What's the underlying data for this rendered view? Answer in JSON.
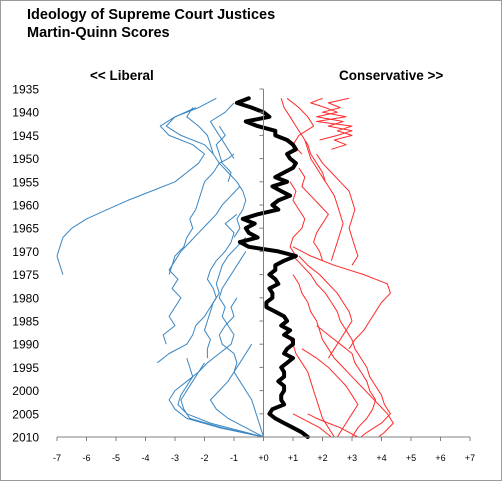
{
  "chart_data": {
    "type": "line",
    "title": "Ideology of Supreme Court Justices",
    "subtitle": "Martin-Quinn Scores",
    "left_label": "<< Liberal",
    "right_label": "Conservative  >>",
    "orientation": "horizontal-value-axis, vertical-year-axis",
    "xlim": [
      -7,
      7
    ],
    "ylim": [
      1935,
      2010
    ],
    "x_ticks": [
      "-7",
      "-6",
      "-5",
      "-4",
      "-3",
      "-2",
      "-1",
      "+0",
      "+1",
      "+2",
      "+3",
      "+4",
      "+5",
      "+6",
      "+7"
    ],
    "y_ticks": [
      "1935",
      "1940",
      "1945",
      "1950",
      "1955",
      "1960",
      "1965",
      "1970",
      "1975",
      "1980",
      "1985",
      "1990",
      "1995",
      "2000",
      "2005",
      "2010"
    ],
    "grid": false,
    "colors": {
      "liberal": "#3a86c2",
      "conservative": "#ff2a2a",
      "median": "#000000",
      "axis": "#808080"
    },
    "median": {
      "years": [
        1937,
        1938,
        1939,
        1940,
        1941,
        1942,
        1943,
        1944,
        1945,
        1946,
        1947,
        1948,
        1949,
        1950,
        1951,
        1952,
        1953,
        1954,
        1955,
        1956,
        1957,
        1958,
        1959,
        1960,
        1961,
        1962,
        1963,
        1964,
        1965,
        1966,
        1967,
        1968,
        1969,
        1970,
        1971,
        1972,
        1973,
        1974,
        1975,
        1976,
        1977,
        1978,
        1979,
        1980,
        1981,
        1982,
        1983,
        1984,
        1985,
        1986,
        1987,
        1988,
        1989,
        1990,
        1991,
        1992,
        1993,
        1994,
        1995,
        1996,
        1997,
        1998,
        1999,
        2000,
        2001,
        2002,
        2003,
        2004,
        2005,
        2006,
        2007,
        2008,
        2009,
        2010
      ],
      "values": [
        -0.5,
        -0.9,
        -0.4,
        0.0,
        0.2,
        -0.6,
        -0.2,
        0.4,
        0.4,
        0.8,
        1.0,
        1.1,
        0.8,
        0.9,
        1.1,
        1.0,
        0.7,
        0.4,
        0.8,
        0.3,
        0.6,
        0.9,
        0.5,
        0.3,
        0.5,
        -0.2,
        -0.7,
        -0.3,
        -0.6,
        -0.5,
        -0.2,
        -0.8,
        -0.5,
        0.5,
        1.1,
        0.7,
        0.4,
        0.4,
        0.2,
        0.4,
        0.5,
        0.2,
        0.3,
        0.3,
        0.1,
        0.1,
        0.4,
        0.7,
        0.8,
        0.6,
        0.9,
        0.7,
        1.0,
        1.0,
        0.8,
        0.7,
        1.0,
        0.8,
        0.6,
        0.7,
        0.7,
        0.5,
        0.7,
        0.7,
        0.6,
        0.6,
        0.7,
        0.3,
        0.2,
        0.4,
        0.7,
        1.0,
        1.3,
        1.5
      ]
    },
    "liberal_series": [
      {
        "years": [
          1937,
          1939,
          1941,
          1943,
          1945,
          1947,
          1949
        ],
        "values": [
          -1.6,
          -2.2,
          -3.0,
          -3.3,
          -2.8,
          -2.0,
          -1.7
        ]
      },
      {
        "years": [
          1939,
          1941,
          1943,
          1945,
          1947,
          1949,
          1951,
          1953,
          1955,
          1957,
          1959,
          1961,
          1963,
          1965,
          1967,
          1969,
          1971,
          1973,
          1975
        ],
        "values": [
          -2.3,
          -3.0,
          -3.5,
          -3.2,
          -2.4,
          -2.0,
          -2.2,
          -2.6,
          -3.0,
          -3.8,
          -4.6,
          -5.3,
          -6.0,
          -6.5,
          -6.8,
          -6.9,
          -7.0,
          -6.9,
          -6.8
        ]
      },
      {
        "years": [
          1939,
          1941,
          1943,
          1945,
          1947,
          1949,
          1951,
          1953,
          1955,
          1957,
          1959,
          1961,
          1963,
          1965,
          1967,
          1969,
          1971,
          1973,
          1975
        ],
        "values": [
          -2.4,
          -2.6,
          -2.2,
          -1.9,
          -1.8,
          -1.7,
          -1.5,
          -1.7,
          -2.0,
          -2.1,
          -2.2,
          -2.3,
          -2.5,
          -2.4,
          -2.6,
          -2.7,
          -3.0,
          -3.1,
          -3.2
        ]
      },
      {
        "years": [
          1938,
          1940,
          1942,
          1944,
          1946,
          1948,
          1950
        ],
        "values": [
          -1.0,
          -1.3,
          -1.8,
          -1.6,
          -1.4,
          -1.2,
          -1.0
        ]
      },
      {
        "years": [
          1943,
          1945,
          1947,
          1949,
          1951,
          1953,
          1955
        ],
        "values": [
          -1.5,
          -1.3,
          -1.6,
          -1.5,
          -1.4,
          -1.1,
          -1.2
        ]
      },
      {
        "years": [
          1949,
          1950,
          1951,
          1953,
          1955,
          1957,
          1959,
          1961,
          1963,
          1965,
          1967
        ],
        "values": [
          -1.0,
          -1.2,
          -1.5,
          -1.2,
          -0.9,
          -0.7,
          -0.6,
          -0.7,
          -0.9,
          -0.8,
          -1.0
        ]
      },
      {
        "years": [
          1956,
          1958,
          1960,
          1962,
          1964,
          1966,
          1968,
          1970,
          1972,
          1974,
          1976,
          1978,
          1980,
          1982,
          1984,
          1986,
          1988,
          1990
        ],
        "values": [
          -0.8,
          -1.1,
          -1.4,
          -1.6,
          -1.9,
          -2.2,
          -2.5,
          -2.8,
          -3.0,
          -3.2,
          -2.9,
          -3.1,
          -2.8,
          -3.0,
          -3.2,
          -3.0,
          -3.4,
          -3.3
        ]
      },
      {
        "years": [
          1962,
          1964,
          1966,
          1968,
          1970,
          1972,
          1974,
          1976,
          1978,
          1980,
          1982,
          1984,
          1986,
          1988,
          1990,
          1992,
          1994
        ],
        "values": [
          -0.9,
          -1.3,
          -1.0,
          -1.1,
          -1.3,
          -1.6,
          -1.8,
          -1.9,
          -1.7,
          -1.6,
          -1.8,
          -2.0,
          -2.3,
          -2.4,
          -2.6,
          -3.2,
          -3.6
        ]
      },
      {
        "years": [
          1967,
          1969,
          1971,
          1973,
          1975,
          1977,
          1979,
          1981,
          1983,
          1985,
          1987,
          1989,
          1991,
          1993
        ],
        "values": [
          -0.6,
          -0.9,
          -1.2,
          -1.4,
          -1.5,
          -1.6,
          -1.5,
          -1.7,
          -1.8,
          -1.9,
          -2.0,
          -1.8,
          -1.9,
          -1.9
        ]
      },
      {
        "years": [
          1970,
          1972,
          1974,
          1976,
          1978,
          1980,
          1982,
          1984,
          1986,
          1988,
          1990,
          1992,
          1994,
          1996,
          1998,
          2000,
          2002,
          2004,
          2006,
          2008,
          2010
        ],
        "values": [
          -0.6,
          -0.8,
          -1.0,
          -1.2,
          -1.4,
          -1.5,
          -1.3,
          -1.4,
          -1.2,
          -1.0,
          -1.1,
          -1.5,
          -1.9,
          -2.2,
          -2.4,
          -2.6,
          -2.8,
          -2.7,
          -2.5,
          -1.4,
          0.0
        ]
      },
      {
        "years": [
          1993,
          1995,
          1997,
          1999,
          2001,
          2003,
          2005,
          2007,
          2009,
          2010
        ],
        "values": [
          -2.6,
          -2.5,
          -2.4,
          -2.6,
          -2.8,
          -2.9,
          -2.6,
          -1.8,
          -0.6,
          0.0
        ]
      },
      {
        "years": [
          1994,
          1996,
          1998,
          2000,
          2002,
          2004,
          2006,
          2008,
          2010
        ],
        "values": [
          -2.0,
          -2.2,
          -2.6,
          -3.0,
          -3.2,
          -3.0,
          -2.6,
          -1.5,
          0.0
        ]
      },
      {
        "years": [
          1990,
          1992,
          1994,
          1996,
          1998,
          2000,
          2002,
          2004,
          2006,
          2008,
          2010
        ],
        "values": [
          -0.4,
          -0.6,
          -0.8,
          -1.0,
          -1.2,
          -1.5,
          -1.8,
          -1.6,
          -1.2,
          -0.6,
          0.0
        ]
      },
      {
        "years": [
          1980,
          1982,
          1984,
          1986,
          1988,
          1990,
          1992,
          1994,
          1996,
          1998,
          2000,
          2002,
          2004,
          2006,
          2008,
          2010
        ],
        "values": [
          -0.9,
          -1.1,
          -1.0,
          -1.3,
          -1.5,
          -1.4,
          -1.0,
          -0.9,
          -1.0,
          -0.8,
          -0.6,
          -0.4,
          -0.3,
          -0.2,
          -0.1,
          0.0
        ]
      }
    ],
    "conservative_series": [
      {
        "years": [
          1937,
          1938,
          1939,
          1940,
          1941,
          1942,
          1943,
          1944,
          1945,
          1946,
          1947,
          1948
        ],
        "values": [
          2.9,
          2.2,
          2.6,
          2.0,
          2.8,
          1.8,
          3.0,
          2.5,
          3.0,
          2.4,
          2.8,
          2.3
        ]
      },
      {
        "years": [
          1937,
          1938,
          1939,
          1940,
          1941,
          1942,
          1943,
          1944,
          1945,
          1946
        ],
        "values": [
          2.0,
          1.6,
          2.1,
          2.5,
          1.8,
          2.7,
          2.2,
          3.0,
          2.5,
          1.9
        ]
      },
      {
        "years": [
          1937,
          1939,
          1941,
          1943,
          1945,
          1947,
          1949
        ],
        "values": [
          0.8,
          1.2,
          1.5,
          1.7,
          1.2,
          1.0,
          1.3
        ]
      },
      {
        "years": [
          1937,
          1939,
          1941,
          1943,
          1945,
          1947,
          1949,
          1951,
          1953,
          1955
        ],
        "values": [
          0.6,
          0.7,
          0.9,
          1.1,
          1.3,
          1.5,
          1.6,
          1.8,
          2.0,
          2.1
        ]
      },
      {
        "years": [
          1946,
          1948,
          1950,
          1952,
          1954,
          1956,
          1958,
          1960,
          1962,
          1964,
          1966,
          1968,
          1970,
          1972
        ],
        "values": [
          1.4,
          1.5,
          1.6,
          1.8,
          2.0,
          2.2,
          2.4,
          2.5,
          2.6,
          2.7,
          2.6,
          2.5,
          2.4,
          2.3
        ]
      },
      {
        "years": [
          1949,
          1951,
          1953,
          1955,
          1957,
          1959,
          1961,
          1963,
          1965,
          1967,
          1969,
          1971,
          1973
        ],
        "values": [
          1.8,
          2.0,
          2.3,
          2.6,
          2.9,
          3.0,
          3.1,
          3.0,
          2.9,
          3.0,
          3.1,
          3.2,
          3.0
        ]
      },
      {
        "years": [
          1952,
          1954,
          1956,
          1958,
          1960,
          1962,
          1964,
          1966,
          1968,
          1970,
          1972
        ],
        "values": [
          1.2,
          1.4,
          1.3,
          1.6,
          1.9,
          2.2,
          2.0,
          1.8,
          1.7,
          1.9,
          2.0
        ]
      },
      {
        "years": [
          1955,
          1957,
          1959,
          1961,
          1963,
          1965,
          1967,
          1969,
          1971
        ],
        "values": [
          0.9,
          1.1,
          1.0,
          1.2,
          1.4,
          1.3,
          1.0,
          0.9,
          1.1
        ]
      },
      {
        "years": [
          1969,
          1971,
          1973,
          1975,
          1977,
          1979,
          1981,
          1983,
          1985,
          1987,
          1989,
          1991
        ],
        "values": [
          1.0,
          1.6,
          2.4,
          3.4,
          4.2,
          4.3,
          4.0,
          3.8,
          3.6,
          3.4,
          3.1,
          2.9
        ]
      },
      {
        "years": [
          1971,
          1973,
          1975,
          1977,
          1979,
          1981,
          1983,
          1985,
          1987,
          1989,
          1991,
          1993,
          1995,
          1997,
          1999,
          2001,
          2003,
          2005,
          2007,
          2009,
          2010
        ],
        "values": [
          1.0,
          1.3,
          1.6,
          1.8,
          2.1,
          2.3,
          2.5,
          2.6,
          2.8,
          3.0,
          3.1,
          3.3,
          3.5,
          3.6,
          3.8,
          4.0,
          4.1,
          4.3,
          4.0,
          3.5,
          3.3
        ]
      },
      {
        "years": [
          1971,
          1973,
          1975,
          1977,
          1979,
          1981,
          1983,
          1985,
          1987,
          1989,
          1991,
          1993
        ],
        "values": [
          1.2,
          1.5,
          1.9,
          2.2,
          2.5,
          2.7,
          2.9,
          3.0,
          2.8,
          2.6,
          2.4,
          2.2
        ]
      },
      {
        "years": [
          1975,
          1977,
          1979,
          1981,
          1983,
          1985,
          1987,
          1989,
          1991,
          1993,
          1995,
          1997,
          1999,
          2001,
          2003,
          2005,
          2007,
          2009,
          2010
        ],
        "values": [
          1.0,
          1.2,
          1.3,
          1.5,
          1.6,
          1.8,
          1.9,
          2.0,
          2.2,
          2.4,
          2.7,
          3.0,
          3.3,
          3.6,
          3.9,
          4.2,
          4.4,
          4.1,
          3.9
        ]
      },
      {
        "years": [
          1986,
          1988,
          1990,
          1992,
          1994,
          1996,
          1998,
          2000,
          2002,
          2004,
          2006,
          2008,
          2010
        ],
        "values": [
          1.8,
          2.2,
          2.6,
          3.0,
          3.1,
          3.3,
          3.5,
          3.6,
          3.8,
          3.7,
          3.5,
          3.2,
          3.0
        ]
      },
      {
        "years": [
          1988,
          1990,
          1992,
          1994,
          1996,
          1998,
          2000,
          2002,
          2004,
          2006,
          2008,
          2010
        ],
        "values": [
          0.8,
          1.0,
          1.1,
          1.3,
          1.5,
          1.6,
          1.7,
          1.8,
          1.9,
          2.0,
          2.2,
          2.4
        ]
      },
      {
        "years": [
          1991,
          1993,
          1995,
          1997,
          1999,
          2001,
          2003,
          2005,
          2007,
          2009,
          2010
        ],
        "values": [
          1.3,
          1.8,
          2.2,
          2.5,
          2.8,
          3.0,
          3.2,
          3.0,
          2.8,
          2.6,
          2.5
        ]
      },
      {
        "years": [
          2005,
          2006,
          2007,
          2008,
          2009,
          2010
        ],
        "values": [
          1.0,
          1.3,
          1.6,
          1.9,
          2.1,
          2.3
        ]
      },
      {
        "years": [
          2005,
          2006,
          2007,
          2008,
          2009,
          2010
        ],
        "values": [
          1.5,
          1.8,
          2.2,
          2.6,
          2.9,
          3.2
        ]
      }
    ]
  }
}
